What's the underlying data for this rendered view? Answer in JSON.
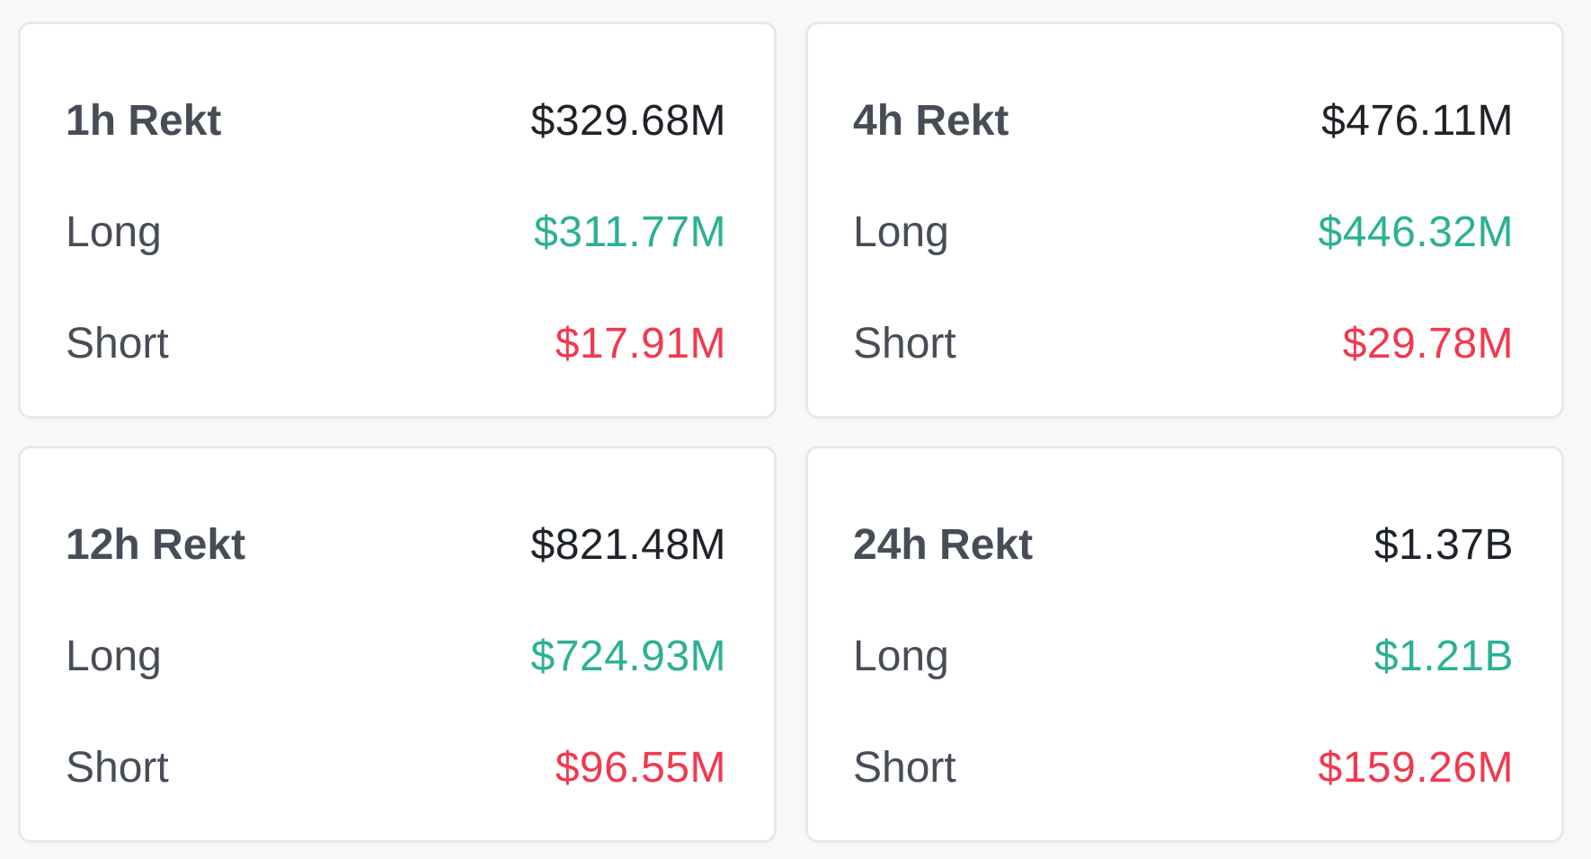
{
  "colors": {
    "long": "#2ab193",
    "short": "#f0394f",
    "total": "#1e2329",
    "label": "#474d57",
    "card_border": "#e6e8eb",
    "background": "#f8f8f8"
  },
  "cards": [
    {
      "title": "1h Rekt",
      "total": "$329.68M",
      "long_label": "Long",
      "long_value": "$311.77M",
      "short_label": "Short",
      "short_value": "$17.91M"
    },
    {
      "title": "4h Rekt",
      "total": "$476.11M",
      "long_label": "Long",
      "long_value": "$446.32M",
      "short_label": "Short",
      "short_value": "$29.78M"
    },
    {
      "title": "12h Rekt",
      "total": "$821.48M",
      "long_label": "Long",
      "long_value": "$724.93M",
      "short_label": "Short",
      "short_value": "$96.55M"
    },
    {
      "title": "24h Rekt",
      "total": "$1.37B",
      "long_label": "Long",
      "long_value": "$1.21B",
      "short_label": "Short",
      "short_value": "$159.26M"
    }
  ]
}
